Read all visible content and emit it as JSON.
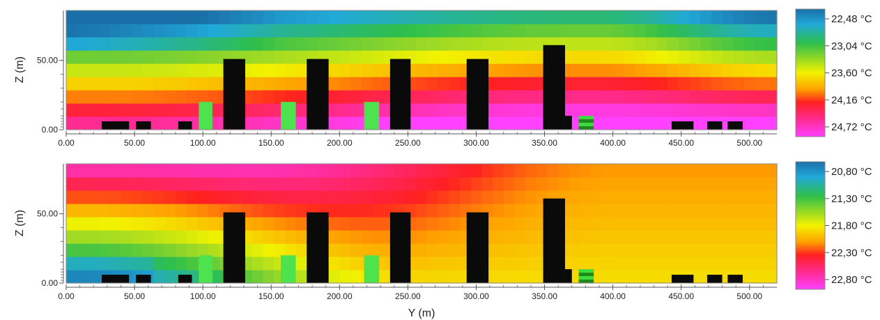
{
  "chart_data": [
    {
      "type": "heatmap",
      "title": "",
      "xlabel": "",
      "ylabel": "Z (m)",
      "xlim": [
        0,
        520
      ],
      "ylim": [
        0,
        86
      ],
      "x_ticks": [
        "0.00",
        "50.00",
        "100.00",
        "150.00",
        "200.00",
        "250.00",
        "300.00",
        "350.00",
        "400.00",
        "450.00",
        "500.00"
      ],
      "y_ticks": [
        "0.00",
        "50.00"
      ],
      "colorbar": {
        "labels": [
          "22,48 °C",
          "23,04 °C",
          "23,60 °C",
          "24,16 °C",
          "24,72 °C"
        ],
        "values": [
          22.48,
          23.04,
          23.6,
          24.16,
          24.72
        ],
        "colors_top_to_bottom": [
          "#1a6fa8",
          "#2fbf4a",
          "#f2f200",
          "#ff2020",
          "#ff40ff"
        ]
      },
      "buildings": [
        {
          "y0": 115,
          "y1": 131,
          "height": 51
        },
        {
          "y0": 176,
          "y1": 192,
          "height": 51
        },
        {
          "y0": 237,
          "y1": 252,
          "height": 51
        },
        {
          "y0": 293,
          "y1": 309,
          "height": 51
        },
        {
          "y0": 349,
          "y1": 365,
          "height": 61
        },
        {
          "y0": 365,
          "y1": 370,
          "height": 10
        },
        {
          "y0": 26,
          "y1": 46,
          "height": 6
        },
        {
          "y0": 51,
          "y1": 62,
          "height": 6
        },
        {
          "y0": 82,
          "y1": 92,
          "height": 6
        },
        {
          "y0": 443,
          "y1": 459,
          "height": 6
        },
        {
          "y0": 469,
          "y1": 480,
          "height": 6
        },
        {
          "y0": 484,
          "y1": 495,
          "height": 6
        }
      ],
      "vegetation": [
        {
          "y0": 97,
          "y1": 107,
          "height": 20
        },
        {
          "y0": 157,
          "y1": 168,
          "height": 20
        },
        {
          "y0": 218,
          "y1": 229,
          "height": 20
        },
        {
          "y0": 375,
          "y1": 386,
          "height": 10
        }
      ]
    },
    {
      "type": "heatmap",
      "title": "",
      "xlabel": "Y (m)",
      "ylabel": "Z (m)",
      "xlim": [
        0,
        520
      ],
      "ylim": [
        0,
        86
      ],
      "x_ticks": [
        "0.00",
        "50.00",
        "100.00",
        "150.00",
        "200.00",
        "250.00",
        "300.00",
        "350.00",
        "400.00",
        "450.00",
        "500.00"
      ],
      "y_ticks": [
        "0.00",
        "50.00"
      ],
      "colorbar": {
        "labels": [
          "20,80 °C",
          "21,30 °C",
          "21,80 °C",
          "22,30 °C",
          "22,80 °C"
        ],
        "values": [
          20.8,
          21.3,
          21.8,
          22.3,
          22.8
        ],
        "colors_top_to_bottom": [
          "#1a6fa8",
          "#2fbf4a",
          "#f2f200",
          "#ff2020",
          "#ff40ff"
        ]
      },
      "buildings": [
        {
          "y0": 115,
          "y1": 131,
          "height": 51
        },
        {
          "y0": 176,
          "y1": 192,
          "height": 51
        },
        {
          "y0": 237,
          "y1": 252,
          "height": 51
        },
        {
          "y0": 293,
          "y1": 309,
          "height": 51
        },
        {
          "y0": 349,
          "y1": 365,
          "height": 61
        },
        {
          "y0": 365,
          "y1": 370,
          "height": 10
        },
        {
          "y0": 26,
          "y1": 46,
          "height": 6
        },
        {
          "y0": 51,
          "y1": 62,
          "height": 6
        },
        {
          "y0": 82,
          "y1": 92,
          "height": 6
        },
        {
          "y0": 443,
          "y1": 459,
          "height": 6
        },
        {
          "y0": 469,
          "y1": 480,
          "height": 6
        },
        {
          "y0": 484,
          "y1": 495,
          "height": 6
        }
      ],
      "vegetation": [
        {
          "y0": 97,
          "y1": 107,
          "height": 20
        },
        {
          "y0": 157,
          "y1": 168,
          "height": 20
        },
        {
          "y0": 218,
          "y1": 229,
          "height": 20
        },
        {
          "y0": 375,
          "y1": 386,
          "height": 10
        }
      ]
    }
  ]
}
